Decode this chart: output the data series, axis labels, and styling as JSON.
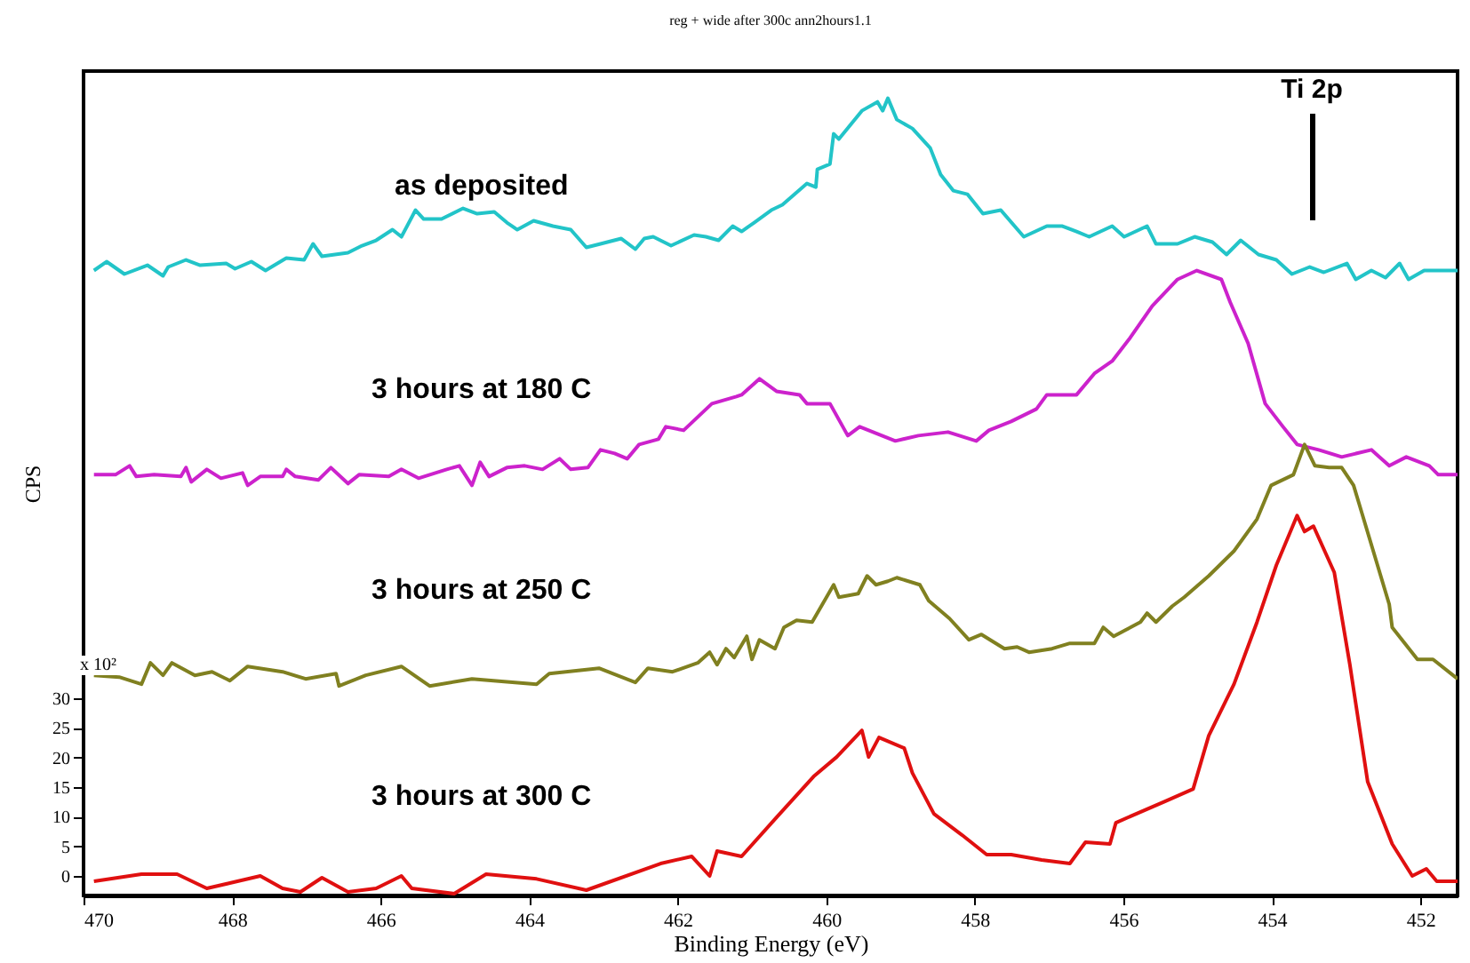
{
  "chart_data": {
    "type": "line",
    "title": "reg + wide after 300c ann2hours1.1",
    "xlabel": "Binding Energy (eV)",
    "ylabel": "CPS",
    "xlim": [
      470,
      451.5
    ],
    "xticks": [
      470,
      468,
      466,
      464,
      462,
      460,
      458,
      456,
      454,
      452
    ],
    "ylim": [
      -3.3,
      136
    ],
    "yticks": [
      0,
      5,
      10,
      15,
      20,
      25,
      30
    ],
    "grid": false,
    "legend": false,
    "line_style": "solid",
    "annotations": [
      "x 10²",
      "Ti 2p"
    ],
    "series": [
      {
        "name": "as deposited",
        "color": "#22c4c8",
        "x": [
          469.86,
          469.69,
          469.45,
          469.14,
          468.93,
          468.86,
          468.62,
          468.43,
          468.08,
          467.96,
          467.74,
          467.55,
          467.27,
          467.03,
          466.91,
          466.79,
          466.44,
          466.25,
          466.06,
          465.84,
          465.72,
          465.53,
          465.42,
          465.18,
          464.89,
          464.7,
          464.47,
          464.3,
          464.16,
          463.94,
          463.68,
          463.44,
          463.23,
          463.04,
          462.76,
          462.57,
          462.45,
          462.33,
          462.09,
          461.78,
          461.62,
          461.45,
          461.26,
          461.14,
          460.97,
          460.74,
          460.59,
          460.26,
          460.14,
          460.12,
          459.95,
          459.9,
          459.83,
          459.52,
          459.31,
          459.24,
          459.17,
          459.05,
          458.84,
          458.6,
          458.46,
          458.29,
          458.1,
          457.89,
          457.65,
          457.34,
          457.03,
          456.82,
          456.63,
          456.46,
          456.15,
          455.99,
          455.68,
          455.56,
          455.27,
          455.04,
          454.8,
          454.61,
          454.42,
          454.18,
          453.94,
          453.73,
          453.49,
          453.3,
          452.99,
          452.87,
          452.66,
          452.47,
          452.28,
          452.16,
          451.95,
          451.5
        ],
        "values": [
          102.3,
          103.8,
          101.7,
          103.2,
          101.4,
          102.9,
          104.1,
          103.2,
          103.5,
          102.6,
          103.8,
          102.3,
          104.4,
          104.1,
          106.8,
          104.7,
          105.3,
          106.5,
          107.4,
          109.2,
          108.0,
          112.5,
          111.0,
          111.0,
          112.8,
          111.9,
          112.2,
          110.4,
          109.2,
          110.7,
          109.8,
          109.2,
          106.2,
          106.8,
          107.7,
          105.9,
          107.7,
          108.0,
          106.5,
          108.3,
          108.0,
          107.4,
          109.8,
          108.9,
          110.4,
          112.5,
          113.4,
          117.0,
          116.4,
          119.4,
          120.3,
          125.4,
          124.5,
          129.3,
          130.8,
          129.3,
          131.4,
          127.8,
          126.3,
          123.0,
          118.5,
          115.8,
          115.2,
          111.9,
          112.5,
          108.0,
          109.8,
          109.8,
          108.9,
          108.0,
          109.8,
          108.0,
          109.8,
          106.8,
          106.8,
          108.0,
          107.1,
          105.0,
          107.4,
          105.0,
          104.1,
          101.7,
          102.9,
          102.0,
          103.5,
          100.8,
          102.3,
          101.1,
          103.5,
          100.8,
          102.3,
          102.3
        ]
      },
      {
        "name": "3 hours at 180 C",
        "color": "#cc22cc",
        "x": [
          469.86,
          469.57,
          469.38,
          469.29,
          469.05,
          468.69,
          468.62,
          468.55,
          468.34,
          468.15,
          467.86,
          467.79,
          467.62,
          467.32,
          467.27,
          467.15,
          466.84,
          466.67,
          466.44,
          466.29,
          465.89,
          465.72,
          465.49,
          465.11,
          464.94,
          464.77,
          464.66,
          464.54,
          464.3,
          464.06,
          463.82,
          463.59,
          463.44,
          463.21,
          463.04,
          462.85,
          462.68,
          462.52,
          462.26,
          462.16,
          461.92,
          461.54,
          461.21,
          461.14,
          460.9,
          460.67,
          460.36,
          460.26,
          459.95,
          459.71,
          459.55,
          459.07,
          458.76,
          458.36,
          457.98,
          457.81,
          457.51,
          457.17,
          457.03,
          456.63,
          456.39,
          456.15,
          455.91,
          455.61,
          455.27,
          455.01,
          454.68,
          454.56,
          454.32,
          454.09,
          453.85,
          453.66,
          453.37,
          453.06,
          452.66,
          452.42,
          452.19,
          451.88,
          451.76,
          451.5
        ],
        "values": [
          67.8,
          67.8,
          69.3,
          67.5,
          67.8,
          67.5,
          69.0,
          66.6,
          68.7,
          67.2,
          68.1,
          66.0,
          67.5,
          67.5,
          68.7,
          67.5,
          66.9,
          69.0,
          66.3,
          67.8,
          67.5,
          68.7,
          67.2,
          68.7,
          69.3,
          66.0,
          69.9,
          67.5,
          69.0,
          69.3,
          68.7,
          70.5,
          68.7,
          69.0,
          72.0,
          71.4,
          70.5,
          72.9,
          73.8,
          75.9,
          75.3,
          79.8,
          81.0,
          81.3,
          84.0,
          81.9,
          81.3,
          79.8,
          79.8,
          74.4,
          75.9,
          73.5,
          74.4,
          75.0,
          73.5,
          75.3,
          76.8,
          78.9,
          81.3,
          81.3,
          84.9,
          87.0,
          90.9,
          96.3,
          100.8,
          102.3,
          100.8,
          96.9,
          90.0,
          79.8,
          75.9,
          72.9,
          72.0,
          70.8,
          72.0,
          69.3,
          70.8,
          69.3,
          67.8,
          67.8
        ]
      },
      {
        "name": "3 hours at 250 C",
        "color": "#808020",
        "x": [
          469.86,
          469.52,
          469.22,
          469.1,
          468.93,
          468.81,
          468.5,
          468.27,
          468.03,
          467.79,
          467.32,
          467.01,
          466.6,
          466.56,
          466.2,
          465.72,
          465.34,
          464.77,
          463.9,
          463.73,
          463.06,
          462.57,
          462.4,
          462.07,
          461.73,
          461.57,
          461.47,
          461.35,
          461.24,
          461.07,
          461.0,
          460.9,
          460.69,
          460.57,
          460.4,
          460.19,
          459.9,
          459.83,
          459.57,
          459.45,
          459.33,
          459.17,
          459.05,
          458.74,
          458.62,
          458.34,
          458.08,
          457.91,
          457.6,
          457.43,
          457.27,
          456.96,
          456.72,
          456.39,
          456.27,
          456.13,
          455.77,
          455.68,
          455.56,
          455.34,
          455.18,
          454.85,
          454.51,
          454.2,
          454.01,
          453.71,
          453.56,
          453.42,
          453.23,
          453.06,
          452.9,
          452.42,
          452.38,
          452.21,
          452.04,
          451.83,
          451.5
        ],
        "values": [
          33.9,
          33.6,
          32.4,
          36.0,
          33.9,
          36.0,
          33.9,
          34.5,
          33.0,
          35.4,
          34.5,
          33.3,
          34.2,
          32.1,
          33.9,
          35.4,
          32.1,
          33.3,
          32.4,
          34.2,
          35.1,
          32.7,
          35.1,
          34.5,
          36.0,
          37.8,
          35.7,
          38.4,
          36.9,
          40.5,
          36.6,
          39.9,
          38.4,
          42.0,
          43.2,
          42.9,
          49.2,
          47.1,
          47.7,
          50.7,
          49.2,
          49.8,
          50.4,
          49.2,
          46.5,
          43.5,
          39.9,
          40.8,
          38.4,
          38.7,
          37.8,
          38.4,
          39.3,
          39.3,
          42.0,
          40.5,
          42.9,
          44.4,
          42.9,
          45.6,
          47.1,
          50.7,
          54.9,
          60.3,
          66.0,
          67.8,
          72.9,
          69.3,
          69.0,
          69.0,
          66.0,
          45.9,
          42.0,
          39.3,
          36.6,
          36.6,
          33.3
        ]
      },
      {
        "name": "3 hours at 300 C",
        "color": "#e01010",
        "x": [
          469.86,
          469.22,
          468.74,
          468.34,
          468.03,
          467.62,
          467.32,
          467.08,
          466.79,
          466.44,
          466.06,
          465.72,
          465.58,
          465.01,
          464.58,
          463.9,
          463.23,
          462.23,
          461.81,
          461.57,
          461.47,
          461.14,
          460.67,
          460.17,
          459.86,
          459.52,
          459.43,
          459.29,
          458.95,
          458.84,
          458.55,
          458.17,
          457.84,
          457.51,
          457.1,
          456.72,
          456.51,
          456.18,
          456.1,
          455.44,
          455.06,
          454.85,
          454.51,
          454.2,
          453.94,
          453.66,
          453.56,
          453.44,
          453.16,
          452.95,
          452.71,
          452.38,
          452.11,
          451.92,
          451.78,
          451.5
        ],
        "values": [
          -0.9,
          0.3,
          0.3,
          -2.1,
          -1.2,
          0,
          -2.1,
          -2.7,
          -0.3,
          -2.7,
          -2.1,
          0,
          -2.1,
          -3.0,
          0.3,
          -0.5,
          -2.4,
          2.1,
          3.3,
          0,
          4.2,
          3.3,
          9.9,
          16.8,
          20.1,
          24.6,
          20.1,
          23.4,
          21.6,
          17.4,
          10.5,
          6.9,
          3.6,
          3.6,
          2.7,
          2.1,
          5.7,
          5.4,
          9.0,
          12.6,
          14.7,
          23.7,
          32.4,
          42.9,
          52.5,
          60.9,
          58.2,
          59.1,
          51.3,
          35.7,
          15.9,
          5.4,
          0,
          1.2,
          -0.9,
          -0.9
        ]
      }
    ]
  }
}
